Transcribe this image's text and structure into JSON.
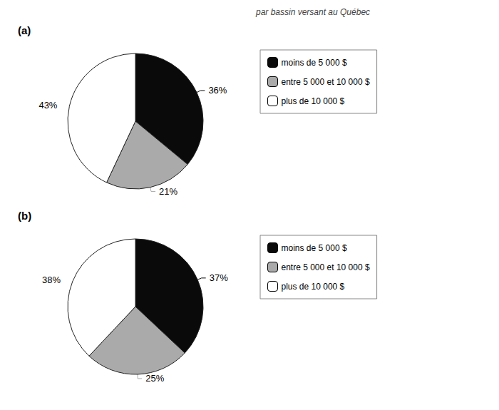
{
  "title": "par bassin versant au Québec",
  "chart_data": [
    {
      "type": "pie",
      "title": "(a)",
      "categories": [
        "moins de 5 000 $",
        "entre 5 000 et 10 000 $",
        "plus de 10 000 $"
      ],
      "values": [
        36,
        21,
        43
      ],
      "value_labels": [
        "36%",
        "21%",
        "43%"
      ],
      "colors": [
        "#0a0a0a",
        "#aaaaaa",
        "#ffffff"
      ],
      "data_labels": true,
      "legend": "right"
    },
    {
      "type": "pie",
      "title": "(b)",
      "categories": [
        "moins de 5 000 $",
        "entre 5 000 et 10 000 $",
        "plus de 10 000 $"
      ],
      "values": [
        37,
        25,
        38
      ],
      "value_labels": [
        "37%",
        "25%",
        "38%"
      ],
      "colors": [
        "#0a0a0a",
        "#aaaaaa",
        "#ffffff"
      ],
      "data_labels": true,
      "legend": "right"
    }
  ]
}
